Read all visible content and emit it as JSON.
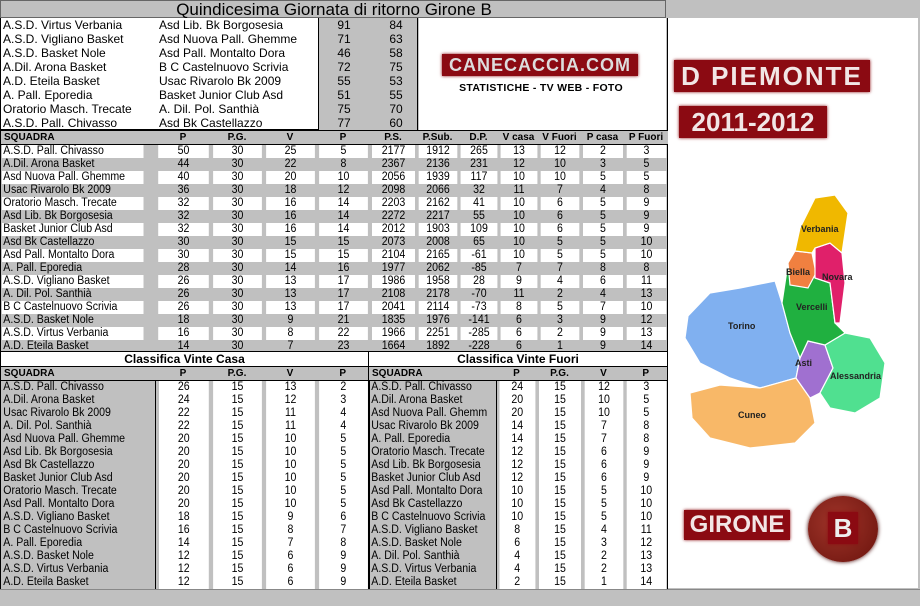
{
  "title": "Quindicesima Giornata di ritorno Girone B",
  "results": [
    [
      "A.S.D. Virtus Verbania",
      "Asd Lib. Bk Borgosesia",
      "91",
      "84"
    ],
    [
      "A.S.D. Vigliano Basket",
      "Asd Nuova Pall. Ghemme",
      "71",
      "63"
    ],
    [
      "A.S.D. Basket Nole",
      "Asd Pall. Montalto Dora",
      "46",
      "58"
    ],
    [
      "A.Dil. Arona Basket",
      "B C Castelnuovo Scrivia",
      "72",
      "75"
    ],
    [
      "A.D. Eteila Basket",
      "Usac Rivarolo Bk 2009",
      "55",
      "53"
    ],
    [
      "A. Pall. Eporedia",
      "Basket Junior Club Asd",
      "51",
      "55"
    ],
    [
      "Oratorio Masch. Trecate",
      "A. Dil. Pol. Santhià",
      "75",
      "70"
    ],
    [
      "A.S.D. Pall. Chivasso",
      "Asd Bk Castellazzo",
      "77",
      "60"
    ]
  ],
  "logo": {
    "site": "CANECACCIA.COM",
    "tagline": "STATISTICHE - TV WEB - FOTO",
    "league": "D PIEMONTE",
    "season": "2011-2012",
    "group": "GIRONE",
    "group_letter": "B"
  },
  "map": {
    "regions": [
      "Verbania",
      "Biella",
      "Novara",
      "Vercelli",
      "Torino",
      "Asti",
      "Alessandria",
      "Cuneo"
    ],
    "colors": {
      "Verbania": "#f0b800",
      "Biella": "#f08040",
      "Novara": "#e0206a",
      "Vercelli": "#20b040",
      "Torino": "#80b0f0",
      "Asti": "#a070d0",
      "Alessandria": "#50e090",
      "Cuneo": "#f8b868"
    }
  },
  "standings": {
    "headers": [
      "SQUADRA",
      "P",
      "P.G.",
      "V",
      "P",
      "P.S.",
      "P.Sub.",
      "D.P.",
      "V casa",
      "V Fuori",
      "P casa",
      "P Fuori"
    ],
    "rows": [
      [
        "A.S.D. Pall. Chivasso",
        "50",
        "30",
        "25",
        "5",
        "2177",
        "1912",
        "265",
        "13",
        "12",
        "2",
        "3"
      ],
      [
        "A.Dil. Arona Basket",
        "44",
        "30",
        "22",
        "8",
        "2367",
        "2136",
        "231",
        "12",
        "10",
        "3",
        "5"
      ],
      [
        "Asd Nuova Pall. Ghemme",
        "40",
        "30",
        "20",
        "10",
        "2056",
        "1939",
        "117",
        "10",
        "10",
        "5",
        "5"
      ],
      [
        "Usac Rivarolo Bk 2009",
        "36",
        "30",
        "18",
        "12",
        "2098",
        "2066",
        "32",
        "11",
        "7",
        "4",
        "8"
      ],
      [
        "Oratorio Masch. Trecate",
        "32",
        "30",
        "16",
        "14",
        "2203",
        "2162",
        "41",
        "10",
        "6",
        "5",
        "9"
      ],
      [
        "Asd Lib. Bk Borgosesia",
        "32",
        "30",
        "16",
        "14",
        "2272",
        "2217",
        "55",
        "10",
        "6",
        "5",
        "9"
      ],
      [
        "Basket Junior Club Asd",
        "32",
        "30",
        "16",
        "14",
        "2012",
        "1903",
        "109",
        "10",
        "6",
        "5",
        "9"
      ],
      [
        "Asd Bk Castellazzo",
        "30",
        "30",
        "15",
        "15",
        "2073",
        "2008",
        "65",
        "10",
        "5",
        "5",
        "10"
      ],
      [
        "Asd Pall. Montalto Dora",
        "30",
        "30",
        "15",
        "15",
        "2104",
        "2165",
        "-61",
        "10",
        "5",
        "5",
        "10"
      ],
      [
        "A. Pall. Eporedia",
        "28",
        "30",
        "14",
        "16",
        "1977",
        "2062",
        "-85",
        "7",
        "7",
        "8",
        "8"
      ],
      [
        "A.S.D. Vigliano Basket",
        "26",
        "30",
        "13",
        "17",
        "1986",
        "1958",
        "28",
        "9",
        "4",
        "6",
        "11"
      ],
      [
        "A. Dil. Pol. Santhià",
        "26",
        "30",
        "13",
        "17",
        "2108",
        "2178",
        "-70",
        "11",
        "2",
        "4",
        "13"
      ],
      [
        "B C Castelnuovo Scrivia",
        "26",
        "30",
        "13",
        "17",
        "2041",
        "2114",
        "-73",
        "8",
        "5",
        "7",
        "10"
      ],
      [
        "A.S.D. Basket Nole",
        "18",
        "30",
        "9",
        "21",
        "1835",
        "1976",
        "-141",
        "6",
        "3",
        "9",
        "12"
      ],
      [
        "A.S.D. Virtus Verbania",
        "16",
        "30",
        "8",
        "22",
        "1966",
        "2251",
        "-285",
        "6",
        "2",
        "9",
        "13"
      ],
      [
        "A.D. Eteila Basket",
        "14",
        "30",
        "7",
        "23",
        "1664",
        "1892",
        "-228",
        "6",
        "1",
        "9",
        "14"
      ]
    ]
  },
  "home": {
    "title": "Classifica Vinte Casa",
    "headers": [
      "SQUADRA",
      "P",
      "P.G.",
      "V",
      "P"
    ],
    "rows": [
      [
        "A.S.D. Pall. Chivasso",
        "26",
        "15",
        "13",
        "2"
      ],
      [
        "A.Dil. Arona Basket",
        "24",
        "15",
        "12",
        "3"
      ],
      [
        "Usac Rivarolo Bk 2009",
        "22",
        "15",
        "11",
        "4"
      ],
      [
        "A. Dil. Pol. Santhià",
        "22",
        "15",
        "11",
        "4"
      ],
      [
        "Asd Nuova Pall. Ghemme",
        "20",
        "15",
        "10",
        "5"
      ],
      [
        "Asd Lib. Bk Borgosesia",
        "20",
        "15",
        "10",
        "5"
      ],
      [
        "Asd Bk Castellazzo",
        "20",
        "15",
        "10",
        "5"
      ],
      [
        "Basket Junior Club Asd",
        "20",
        "15",
        "10",
        "5"
      ],
      [
        "Oratorio Masch. Trecate",
        "20",
        "15",
        "10",
        "5"
      ],
      [
        "Asd Pall. Montalto Dora",
        "20",
        "15",
        "10",
        "5"
      ],
      [
        "A.S.D. Vigliano Basket",
        "18",
        "15",
        "9",
        "6"
      ],
      [
        "B C Castelnuovo Scrivia",
        "16",
        "15",
        "8",
        "7"
      ],
      [
        "A. Pall. Eporedia",
        "14",
        "15",
        "7",
        "8"
      ],
      [
        "A.S.D. Basket Nole",
        "12",
        "15",
        "6",
        "9"
      ],
      [
        "A.S.D. Virtus Verbania",
        "12",
        "15",
        "6",
        "9"
      ],
      [
        "A.D. Eteila Basket",
        "12",
        "15",
        "6",
        "9"
      ]
    ]
  },
  "away": {
    "title": "Classifica Vinte Fuori",
    "headers": [
      "SQUADRA",
      "P",
      "P.G.",
      "V",
      "P"
    ],
    "rows": [
      [
        "A.S.D. Pall. Chivasso",
        "24",
        "15",
        "12",
        "3"
      ],
      [
        "A.Dil. Arona Basket",
        "20",
        "15",
        "10",
        "5"
      ],
      [
        "Asd Nuova Pall. Ghemme",
        "20",
        "15",
        "10",
        "5"
      ],
      [
        "Usac Rivarolo Bk 2009",
        "14",
        "15",
        "7",
        "8"
      ],
      [
        "A. Pall. Eporedia",
        "14",
        "15",
        "7",
        "8"
      ],
      [
        "Oratorio Masch. Trecate",
        "12",
        "15",
        "6",
        "9"
      ],
      [
        "Asd Lib. Bk Borgosesia",
        "12",
        "15",
        "6",
        "9"
      ],
      [
        "Basket Junior Club Asd",
        "12",
        "15",
        "6",
        "9"
      ],
      [
        "Asd Pall. Montalto Dora",
        "10",
        "15",
        "5",
        "10"
      ],
      [
        "Asd Bk Castellazzo",
        "10",
        "15",
        "5",
        "10"
      ],
      [
        "B C Castelnuovo Scrivia",
        "10",
        "15",
        "5",
        "10"
      ],
      [
        "A.S.D. Vigliano Basket",
        "8",
        "15",
        "4",
        "11"
      ],
      [
        "A.S.D. Basket Nole",
        "6",
        "15",
        "3",
        "12"
      ],
      [
        "A. Dil. Pol. Santhià",
        "4",
        "15",
        "2",
        "13"
      ],
      [
        "A.S.D. Virtus Verbania",
        "4",
        "15",
        "2",
        "13"
      ],
      [
        "A.D. Eteila Basket",
        "2",
        "15",
        "1",
        "14"
      ]
    ]
  }
}
